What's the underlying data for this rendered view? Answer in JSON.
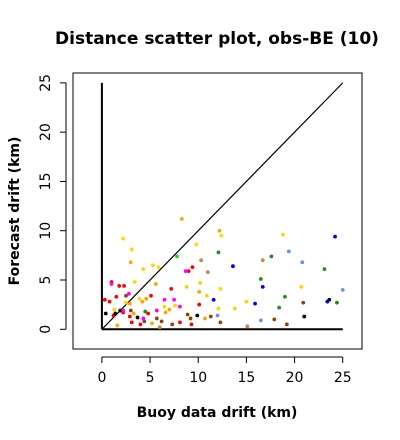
{
  "chart_data": {
    "type": "scatter",
    "title": "Distance scatter plot, obs-BE (10)",
    "xlabel": "Buoy data drift (km)",
    "ylabel": "Forecast drift (km)",
    "xlim": [
      -3,
      27
    ],
    "ylim": [
      -2,
      26
    ],
    "x_ticks": [
      0,
      5,
      10,
      15,
      20,
      25
    ],
    "y_ticks": [
      0,
      5,
      10,
      15,
      20,
      25
    ],
    "grid": false,
    "reference_lines": [
      {
        "name": "identity",
        "x": [
          0,
          25
        ],
        "y": [
          0,
          25
        ],
        "color": "#000000"
      },
      {
        "name": "zero-forecast",
        "x": [
          0,
          25
        ],
        "y": [
          0,
          0
        ],
        "color": "#000000"
      },
      {
        "name": "zero-buoy",
        "x": [
          0,
          0
        ],
        "y": [
          0,
          25
        ],
        "color": "#000000"
      }
    ],
    "points": [
      {
        "x": 0.3,
        "y": 3.0,
        "color": "#ff0000"
      },
      {
        "x": 0.8,
        "y": 2.8,
        "color": "#ff0000"
      },
      {
        "x": 1.0,
        "y": 4.8,
        "color": "#ff0000"
      },
      {
        "x": 1.5,
        "y": 3.3,
        "color": "#ff0000"
      },
      {
        "x": 1.8,
        "y": 4.4,
        "color": "#ff0000"
      },
      {
        "x": 2.3,
        "y": 4.4,
        "color": "#ff0000"
      },
      {
        "x": 2.2,
        "y": 1.7,
        "color": "#ff0000"
      },
      {
        "x": 2.9,
        "y": 1.3,
        "color": "#ff0000"
      },
      {
        "x": 1.2,
        "y": 1.4,
        "color": "#ff0000"
      },
      {
        "x": 4.8,
        "y": 1.6,
        "color": "#ff0000"
      },
      {
        "x": 5.1,
        "y": 3.4,
        "color": "#ff0000"
      },
      {
        "x": 3.1,
        "y": 0.7,
        "color": "#ff0000"
      },
      {
        "x": 4.0,
        "y": 0.5,
        "color": "#ff0000"
      },
      {
        "x": 9.0,
        "y": 5.9,
        "color": "#ff0000"
      },
      {
        "x": 9.4,
        "y": 6.3,
        "color": "#ff0000"
      },
      {
        "x": 10.1,
        "y": 2.5,
        "color": "#ff0000"
      },
      {
        "x": 8.1,
        "y": 0.7,
        "color": "#ff0000"
      },
      {
        "x": 9.3,
        "y": 0.5,
        "color": "#ff0000"
      },
      {
        "x": 7.2,
        "y": 4.1,
        "color": "#ff0000"
      },
      {
        "x": 2.2,
        "y": 9.2,
        "color": "#ffd700"
      },
      {
        "x": 3.1,
        "y": 8.1,
        "color": "#ffd700"
      },
      {
        "x": 4.3,
        "y": 6.1,
        "color": "#ffd700"
      },
      {
        "x": 5.3,
        "y": 6.5,
        "color": "#ffd700"
      },
      {
        "x": 5.9,
        "y": 6.3,
        "color": "#ffd700"
      },
      {
        "x": 3.4,
        "y": 4.8,
        "color": "#ffd700"
      },
      {
        "x": 3.9,
        "y": 3.1,
        "color": "#ffd700"
      },
      {
        "x": 2.5,
        "y": 2.7,
        "color": "#ffd700"
      },
      {
        "x": 1.3,
        "y": 2.0,
        "color": "#ffd700"
      },
      {
        "x": 6.5,
        "y": 2.3,
        "color": "#ffd700"
      },
      {
        "x": 7.6,
        "y": 2.4,
        "color": "#ffd700"
      },
      {
        "x": 8.8,
        "y": 4.3,
        "color": "#ffd700"
      },
      {
        "x": 10.2,
        "y": 4.7,
        "color": "#ffd700"
      },
      {
        "x": 10.9,
        "y": 3.4,
        "color": "#ffd700"
      },
      {
        "x": 12.3,
        "y": 4.1,
        "color": "#ffd700"
      },
      {
        "x": 12.1,
        "y": 2.1,
        "color": "#ffd700"
      },
      {
        "x": 13.8,
        "y": 2.1,
        "color": "#ffd700"
      },
      {
        "x": 15.0,
        "y": 2.8,
        "color": "#ffd700"
      },
      {
        "x": 18.8,
        "y": 9.6,
        "color": "#ffd700"
      },
      {
        "x": 20.7,
        "y": 4.3,
        "color": "#ffd700"
      },
      {
        "x": 12.4,
        "y": 9.5,
        "color": "#ffd700"
      },
      {
        "x": 9.8,
        "y": 8.6,
        "color": "#ffd700"
      },
      {
        "x": 3.3,
        "y": 1.6,
        "color": "#ffa500"
      },
      {
        "x": 3.0,
        "y": 6.8,
        "color": "#ffa500"
      },
      {
        "x": 4.2,
        "y": 2.8,
        "color": "#ffa500"
      },
      {
        "x": 4.6,
        "y": 3.1,
        "color": "#ffa500"
      },
      {
        "x": 6.6,
        "y": 1.7,
        "color": "#ffa500"
      },
      {
        "x": 8.3,
        "y": 11.2,
        "color": "#ffa500"
      },
      {
        "x": 10.1,
        "y": 3.8,
        "color": "#ffa500"
      },
      {
        "x": 10.7,
        "y": 1.1,
        "color": "#ffa500"
      },
      {
        "x": 12.2,
        "y": 10.0,
        "color": "#ffa500"
      },
      {
        "x": 2.9,
        "y": 2.6,
        "color": "#ffa500"
      },
      {
        "x": 5.2,
        "y": 0.6,
        "color": "#ffa500"
      },
      {
        "x": 7.0,
        "y": 2.0,
        "color": "#ffa500"
      },
      {
        "x": 1.6,
        "y": 0.4,
        "color": "#ffa500"
      },
      {
        "x": 5.6,
        "y": 4.6,
        "color": "#ffa500"
      },
      {
        "x": 2.5,
        "y": 3.4,
        "color": "#8b4513"
      },
      {
        "x": 3.0,
        "y": 1.9,
        "color": "#8b4513"
      },
      {
        "x": 4.4,
        "y": 0.8,
        "color": "#8b4513"
      },
      {
        "x": 6.2,
        "y": 0.8,
        "color": "#8b4513"
      },
      {
        "x": 7.3,
        "y": 0.5,
        "color": "#8b4513"
      },
      {
        "x": 8.9,
        "y": 1.5,
        "color": "#8b4513"
      },
      {
        "x": 9.2,
        "y": 1.1,
        "color": "#8b4513"
      },
      {
        "x": 11.3,
        "y": 1.3,
        "color": "#8b4513"
      },
      {
        "x": 12.3,
        "y": 0.7,
        "color": "#8b4513"
      },
      {
        "x": 17.9,
        "y": 1.0,
        "color": "#8b4513"
      },
      {
        "x": 19.2,
        "y": 0.5,
        "color": "#8b4513"
      },
      {
        "x": 20.9,
        "y": 2.7,
        "color": "#8b4513"
      },
      {
        "x": 5.7,
        "y": 1.1,
        "color": "#8b4513"
      },
      {
        "x": 0.4,
        "y": 1.6,
        "color": "#000000"
      },
      {
        "x": 1.4,
        "y": 1.6,
        "color": "#000000"
      },
      {
        "x": 1.9,
        "y": 1.9,
        "color": "#000000"
      },
      {
        "x": 3.7,
        "y": 1.2,
        "color": "#000000"
      },
      {
        "x": 9.9,
        "y": 1.4,
        "color": "#000000"
      },
      {
        "x": 21.0,
        "y": 1.3,
        "color": "#000000"
      },
      {
        "x": 23.6,
        "y": 3.0,
        "color": "#000000"
      },
      {
        "x": 1.0,
        "y": 4.6,
        "color": "#ff00ff"
      },
      {
        "x": 2.8,
        "y": 3.6,
        "color": "#ff00ff"
      },
      {
        "x": 4.3,
        "y": 1.1,
        "color": "#ff00ff"
      },
      {
        "x": 5.7,
        "y": 1.9,
        "color": "#ff00ff"
      },
      {
        "x": 6.5,
        "y": 3.0,
        "color": "#ff00ff"
      },
      {
        "x": 7.5,
        "y": 3.0,
        "color": "#ff00ff"
      },
      {
        "x": 8.1,
        "y": 2.3,
        "color": "#ff00ff"
      },
      {
        "x": 8.7,
        "y": 5.9,
        "color": "#ff00ff"
      },
      {
        "x": 2.2,
        "y": 1.9,
        "color": "#ff00ff"
      },
      {
        "x": 7.8,
        "y": 7.4,
        "color": "#32cd32"
      },
      {
        "x": 12.1,
        "y": 7.8,
        "color": "#228b22"
      },
      {
        "x": 16.5,
        "y": 5.1,
        "color": "#228b22"
      },
      {
        "x": 17.6,
        "y": 7.4,
        "color": "#228b22"
      },
      {
        "x": 18.4,
        "y": 2.2,
        "color": "#228b22"
      },
      {
        "x": 19.0,
        "y": 3.3,
        "color": "#228b22"
      },
      {
        "x": 23.1,
        "y": 6.1,
        "color": "#228b22"
      },
      {
        "x": 24.4,
        "y": 2.7,
        "color": "#228b22"
      },
      {
        "x": 4.5,
        "y": 1.8,
        "color": "#228b22"
      },
      {
        "x": 13.6,
        "y": 6.4,
        "color": "#0000ff"
      },
      {
        "x": 15.9,
        "y": 2.6,
        "color": "#0000ff"
      },
      {
        "x": 16.7,
        "y": 4.3,
        "color": "#0000ff"
      },
      {
        "x": 24.2,
        "y": 9.4,
        "color": "#0000ff"
      },
      {
        "x": 23.4,
        "y": 2.8,
        "color": "#0000ff"
      },
      {
        "x": 11.6,
        "y": 3.0,
        "color": "#0000ff"
      },
      {
        "x": 19.4,
        "y": 7.9,
        "color": "#6495ed"
      },
      {
        "x": 20.8,
        "y": 6.8,
        "color": "#6495ed"
      },
      {
        "x": 25.0,
        "y": 4.0,
        "color": "#6495ed"
      },
      {
        "x": 16.5,
        "y": 0.9,
        "color": "#6495ed"
      },
      {
        "x": 12.0,
        "y": 1.4,
        "color": "#6495ed"
      },
      {
        "x": 16.7,
        "y": 7.0,
        "color": "#cd853f"
      },
      {
        "x": 15.1,
        "y": 0.3,
        "color": "#cd853f"
      },
      {
        "x": 10.3,
        "y": 7.0,
        "color": "#cd853f"
      },
      {
        "x": 11.0,
        "y": 5.8,
        "color": "#cd853f"
      },
      {
        "x": 6.0,
        "y": 0.2,
        "color": "#cd853f"
      }
    ]
  }
}
